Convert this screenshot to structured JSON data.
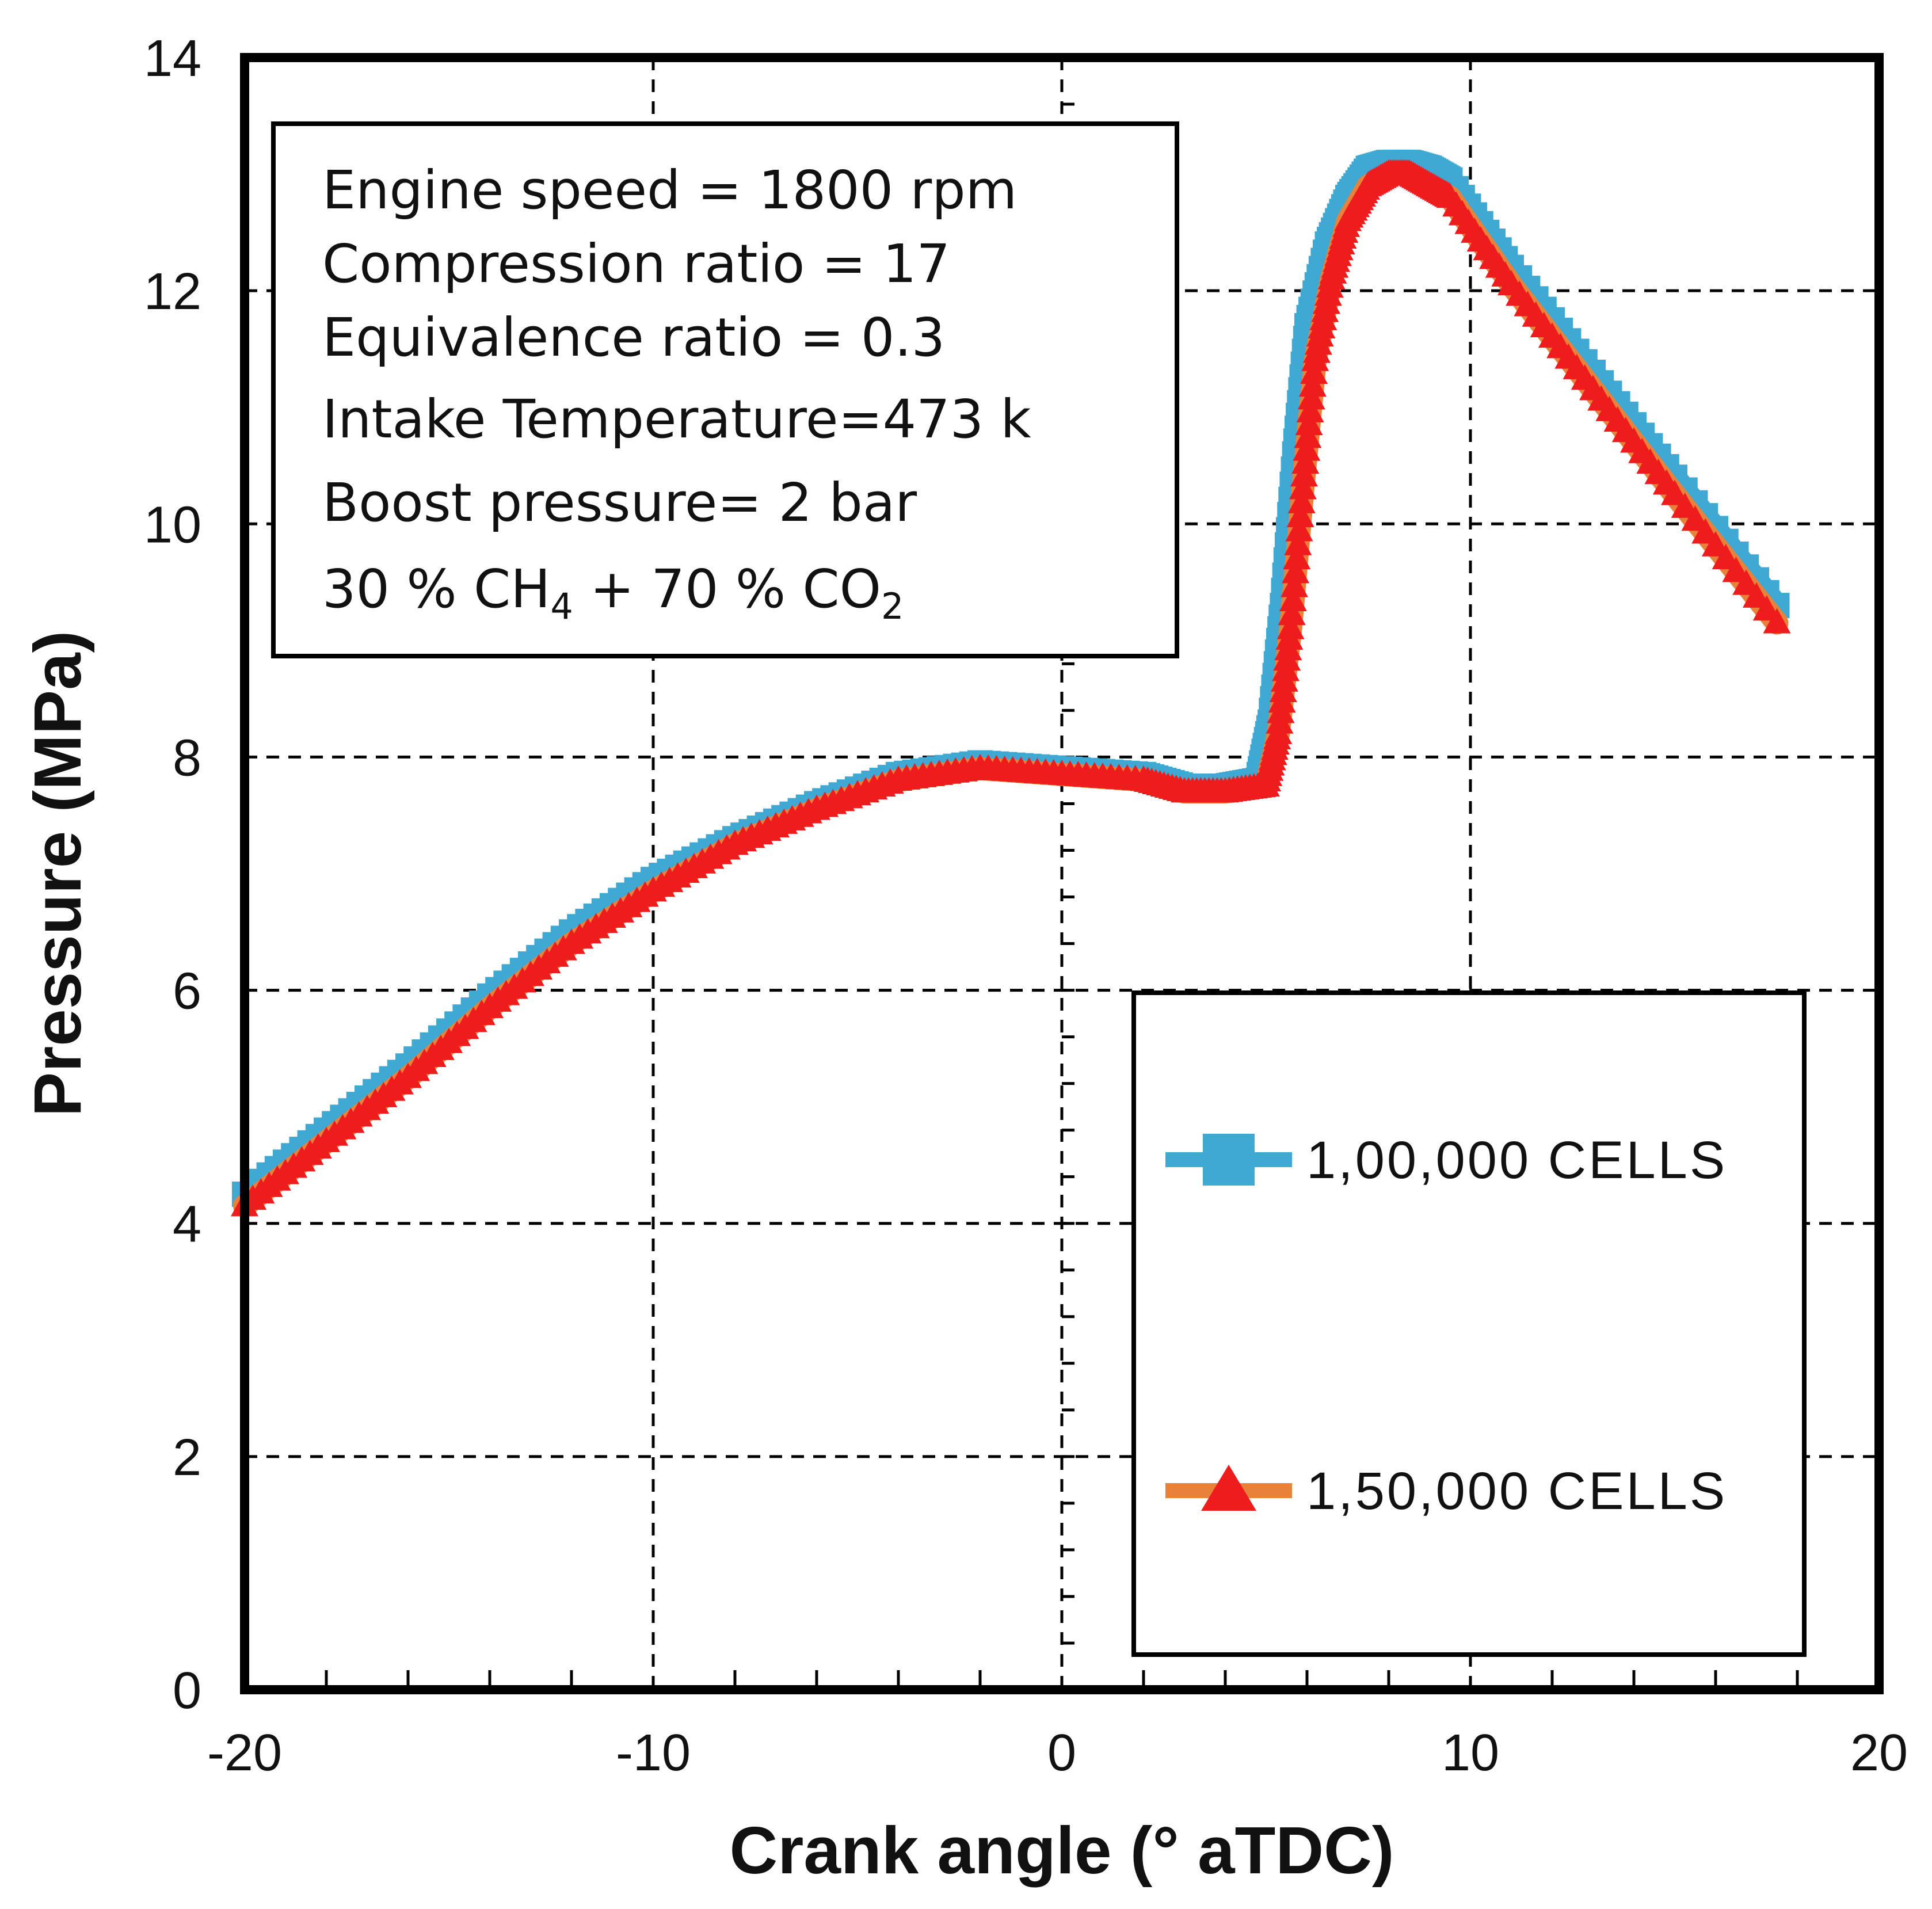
{
  "chart_data": {
    "type": "line",
    "xlabel": "Crank angle (° aTDC)",
    "ylabel": "Pressure (MPa)",
    "xlim": [
      -20,
      20
    ],
    "ylim": [
      0,
      14
    ],
    "xticks": [
      -20,
      -10,
      0,
      10,
      20
    ],
    "yticks": [
      0,
      2,
      4,
      6,
      8,
      10,
      12,
      14
    ],
    "grid": true,
    "legend_position": "lower-right",
    "annotation": {
      "lines": [
        "Engine speed = 1800 rpm",
        "Compression ratio = 17",
        "Equivalence ratio = 0.3",
        "Intake Temperature=473 k",
        "Boost pressure= 2 bar"
      ],
      "composition": {
        "a": "30 % CH",
        "a_sub": "4",
        "b": " + 70 % CO",
        "b_sub": "2"
      }
    },
    "series": [
      {
        "name": "1,00,000 CELLS",
        "line_color": "#3fa9d3",
        "marker_color": "#3fa9d3",
        "marker": "square",
        "x": [
          -20,
          -18,
          -16,
          -14,
          -12,
          -10,
          -8,
          -6,
          -4,
          -2,
          0,
          2,
          3,
          4,
          4.8,
          5.1,
          5.4,
          5.7,
          6.0,
          6.5,
          7.0,
          7.5,
          8.0,
          8.5,
          9.0,
          9.5,
          11,
          13,
          15,
          17.5
        ],
        "y": [
          4.25,
          4.8,
          5.35,
          5.95,
          6.5,
          6.95,
          7.3,
          7.6,
          7.85,
          7.95,
          7.9,
          7.85,
          7.75,
          7.75,
          7.8,
          8.3,
          9.3,
          10.6,
          11.7,
          12.4,
          12.8,
          13.05,
          13.1,
          13.1,
          13.05,
          12.95,
          12.2,
          11.3,
          10.4,
          9.3
        ]
      },
      {
        "name": "1,50,000 CELLS",
        "line_color": "#e8823a",
        "marker_color": "#ee1c1c",
        "marker": "triangle",
        "x": [
          -20,
          -18,
          -16,
          -14,
          -12,
          -10,
          -8,
          -6,
          -4,
          -2,
          0,
          2,
          3,
          4,
          5.0,
          5.3,
          5.6,
          5.9,
          6.2,
          6.6,
          7.0,
          7.5,
          8.0,
          8.5,
          9.0,
          9.5,
          11,
          13,
          15,
          17.5
        ],
        "y": [
          4.15,
          4.7,
          5.25,
          5.85,
          6.4,
          6.85,
          7.25,
          7.55,
          7.8,
          7.9,
          7.85,
          7.8,
          7.7,
          7.7,
          7.75,
          8.2,
          9.1,
          10.3,
          11.4,
          12.1,
          12.6,
          12.9,
          13.0,
          13.0,
          12.9,
          12.8,
          12.05,
          11.15,
          10.25,
          9.15
        ]
      }
    ]
  }
}
